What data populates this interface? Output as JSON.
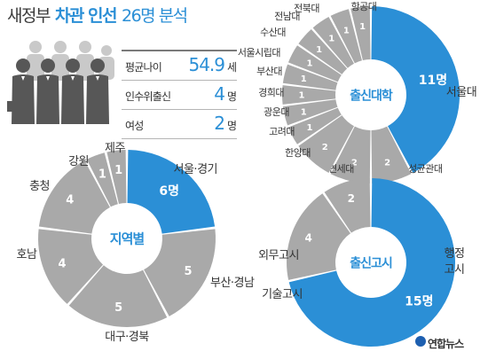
{
  "title": {
    "prefix": "새정부",
    "emphasis": "차관 인선",
    "suffix": "26명 분석"
  },
  "stats": [
    {
      "label": "평균나이",
      "value": "54.9",
      "unit": "세"
    },
    {
      "label": "인수위출신",
      "value": "4",
      "unit": "명"
    },
    {
      "label": "여성",
      "value": "2",
      "unit": "명"
    }
  ],
  "credit": "연합뉴스",
  "colors": {
    "accent": "#2b8fd6",
    "gray": "#a9a9a9",
    "text": "#333333"
  },
  "chart_data": [
    {
      "type": "pie",
      "donut": true,
      "center_label": "출신대학",
      "categories": [
        "서울대",
        "성균관대",
        "연세대",
        "한양대",
        "고려대",
        "광운대",
        "경희대",
        "부산대",
        "서울시립대",
        "수산대",
        "전남대",
        "전북대",
        "항공대"
      ],
      "values": [
        11,
        2,
        2,
        2,
        1,
        1,
        1,
        1,
        1,
        1,
        1,
        1,
        1
      ],
      "value_labels": [
        "11명",
        "2",
        "2",
        "2",
        "1",
        "1",
        "1",
        "1",
        "1",
        "1",
        "1",
        "1",
        "1"
      ]
    },
    {
      "type": "pie",
      "donut": true,
      "center_label": "지역별",
      "categories": [
        "서울·경기",
        "부산·경남",
        "대구·경북",
        "호남",
        "충청",
        "강원",
        "제주"
      ],
      "values": [
        6,
        5,
        5,
        4,
        4,
        1,
        1
      ],
      "value_labels": [
        "6명",
        "5",
        "5",
        "4",
        "4",
        "1",
        "1"
      ]
    },
    {
      "type": "pie",
      "donut": true,
      "center_label": "출신고시",
      "categories": [
        "행정고시",
        "기술고시",
        "외무고시"
      ],
      "values": [
        15,
        4,
        2
      ],
      "value_labels": [
        "15명",
        "4",
        "2"
      ]
    }
  ]
}
